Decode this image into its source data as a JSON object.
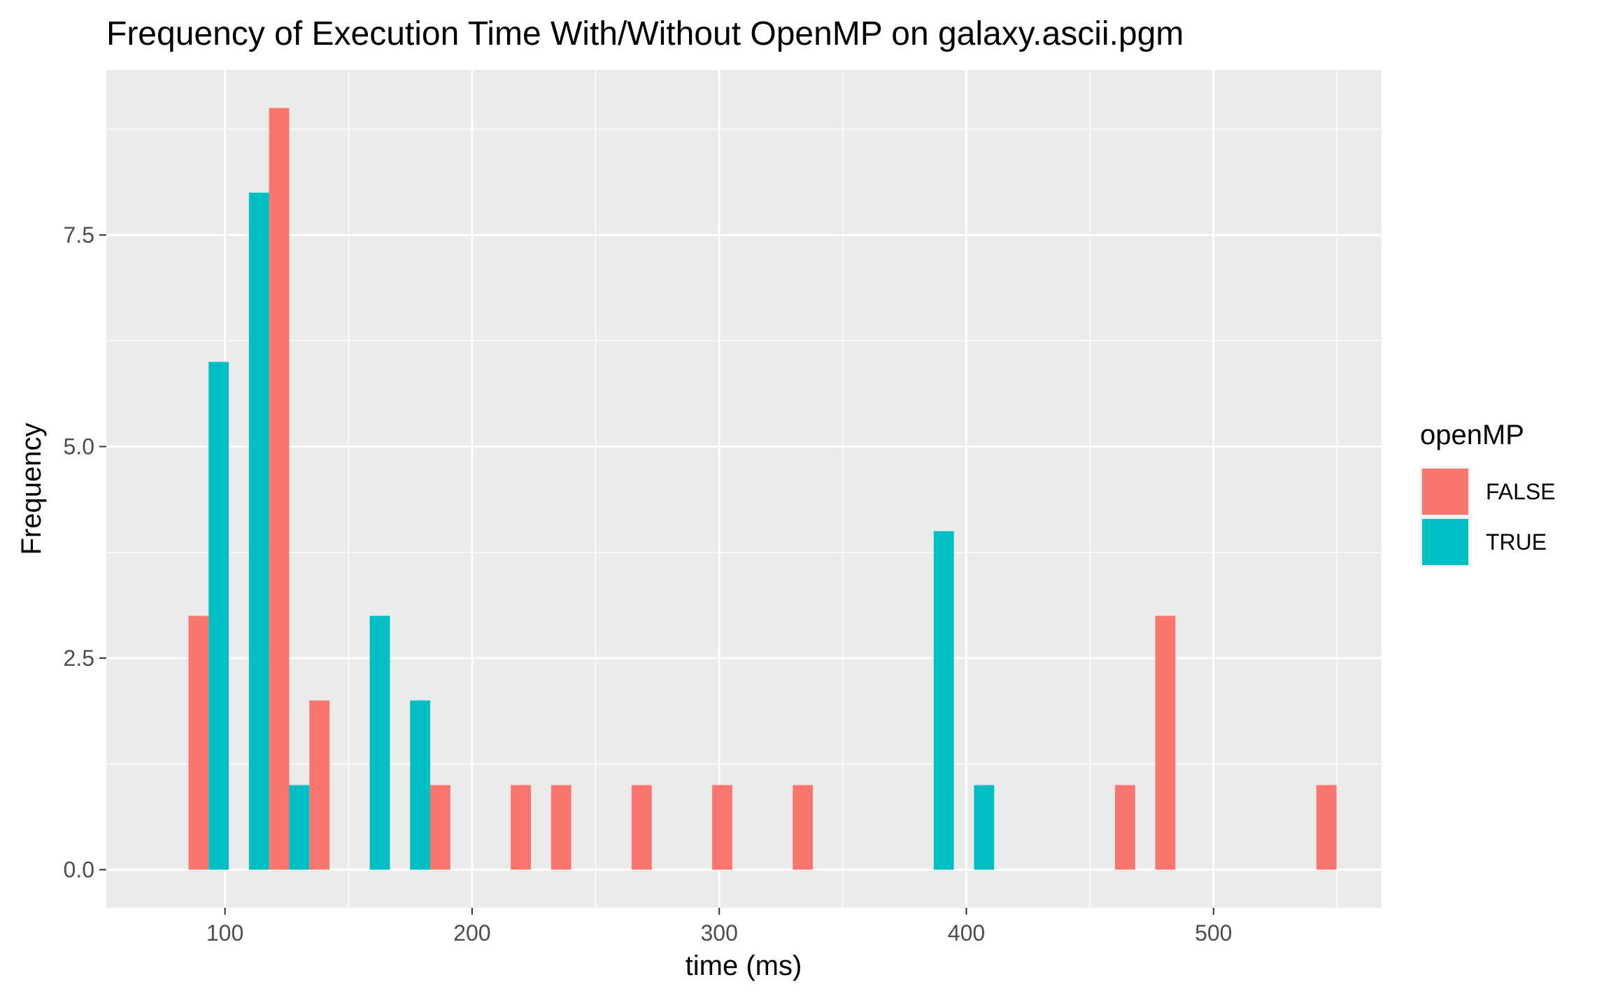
{
  "chart_data": {
    "type": "bar",
    "title": "Frequency of Execution Time With/Without OpenMP on galaxy.ascii.pgm",
    "xlabel": "time (ms)",
    "ylabel": "Frequency",
    "xlim": [
      52,
      568
    ],
    "ylim": [
      -0.45,
      9.45
    ],
    "x_ticks": [
      100,
      200,
      300,
      400,
      500
    ],
    "x_tick_labels": [
      "100",
      "200",
      "300",
      "400",
      "500"
    ],
    "y_ticks": [
      0,
      2.5,
      5,
      7.5
    ],
    "y_tick_labels": [
      "0.0",
      "2.5",
      "5.0",
      "7.5"
    ],
    "bin_width": 16.3,
    "grid": true,
    "legend": {
      "title": "openMP",
      "placement": "right"
    },
    "series": [
      {
        "name": "FALSE",
        "color": "#F8766D",
        "bins": [
          {
            "x": 93.4,
            "count": 3
          },
          {
            "x": 126.0,
            "count": 9
          },
          {
            "x": 142.3,
            "count": 2
          },
          {
            "x": 191.2,
            "count": 1
          },
          {
            "x": 223.8,
            "count": 1
          },
          {
            "x": 240.1,
            "count": 1
          },
          {
            "x": 272.7,
            "count": 1
          },
          {
            "x": 305.3,
            "count": 1
          },
          {
            "x": 337.9,
            "count": 1
          },
          {
            "x": 468.3,
            "count": 1
          },
          {
            "x": 484.6,
            "count": 3
          },
          {
            "x": 549.8,
            "count": 1
          }
        ]
      },
      {
        "name": "TRUE",
        "color": "#00BFC4",
        "bins": [
          {
            "x": 93.4,
            "count": 6
          },
          {
            "x": 109.7,
            "count": 8
          },
          {
            "x": 126.0,
            "count": 1
          },
          {
            "x": 158.6,
            "count": 3
          },
          {
            "x": 174.9,
            "count": 2
          },
          {
            "x": 386.8,
            "count": 4
          },
          {
            "x": 403.1,
            "count": 1
          }
        ]
      }
    ]
  }
}
